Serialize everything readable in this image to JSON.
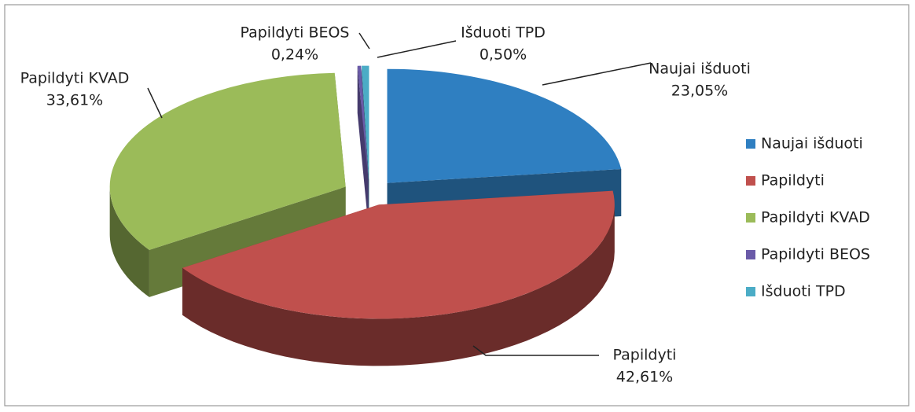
{
  "chart_data": {
    "type": "pie",
    "categories": [
      "Naujai išduoti",
      "Papildyti",
      "Papildyti KVAD",
      "Papildyti BEOS",
      "Išduoti TPD"
    ],
    "values": [
      23.05,
      42.61,
      33.61,
      0.24,
      0.5
    ],
    "value_labels": [
      "23,05%",
      "42,61%",
      "33,61%",
      "0,24%",
      "0,50%"
    ],
    "colors": [
      "#2f7fc1",
      "#c0504d",
      "#9bbb59",
      "#6a5aa8",
      "#4bacc6"
    ],
    "legend": "right"
  }
}
